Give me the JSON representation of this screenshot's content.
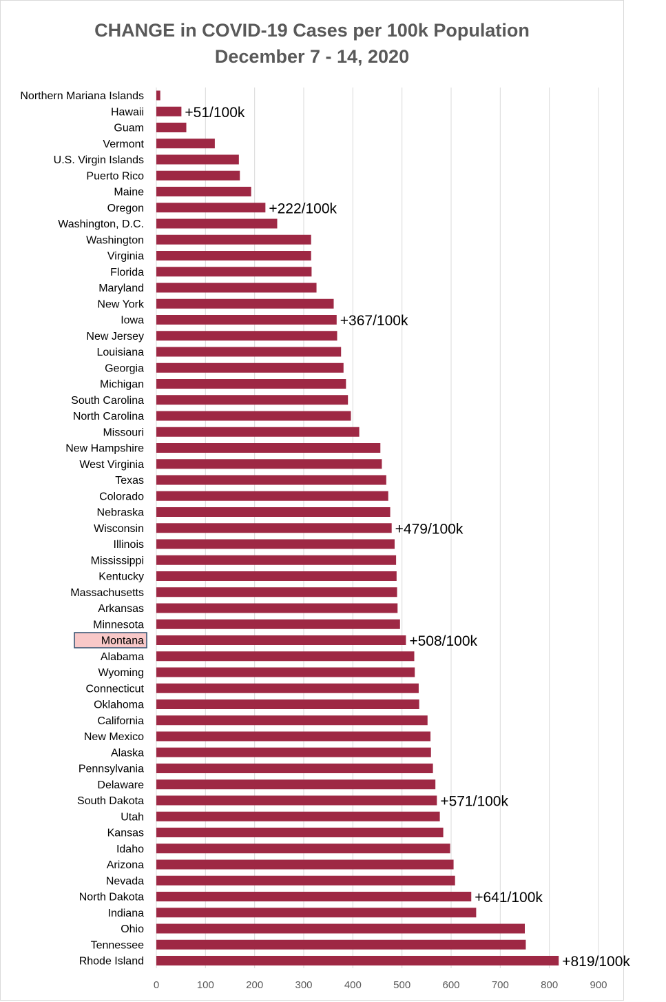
{
  "chart_data": {
    "type": "bar",
    "orientation": "horizontal",
    "title": "CHANGE in COVID-19 Cases per 100k Population",
    "subtitle": "December 7 - 14, 2020",
    "xlabel": "",
    "ylabel": "",
    "xlim": [
      0,
      900
    ],
    "xticks": [
      "0",
      "100",
      "200",
      "300",
      "400",
      "500",
      "600",
      "700",
      "800",
      "900"
    ],
    "grid": true,
    "bar_color": "#9e2844",
    "highlight_category": "Montana",
    "highlight_color": "#f8c8c8",
    "highlight_border": "#2f4f6f",
    "categories": [
      "Northern Mariana Islands",
      "Hawaii",
      "Guam",
      "Vermont",
      "U.S. Virgin Islands",
      "Puerto Rico",
      "Maine",
      "Oregon",
      "Washington, D.C.",
      "Washington",
      "Virginia",
      "Florida",
      "Maryland",
      "New York",
      "Iowa",
      "New Jersey",
      "Louisiana",
      "Georgia",
      "Michigan",
      "South Carolina",
      "North Carolina",
      "Missouri",
      "New Hampshire",
      "West Virginia",
      "Texas",
      "Colorado",
      "Nebraska",
      "Wisconsin",
      "Illinois",
      "Mississippi",
      "Kentucky",
      "Massachusetts",
      "Arkansas",
      "Minnesota",
      "Montana",
      "Alabama",
      "Wyoming",
      "Connecticut",
      "Oklahoma",
      "California",
      "New Mexico",
      "Alaska",
      "Pennsylvania",
      "Delaware",
      "South Dakota",
      "Utah",
      "Kansas",
      "Idaho",
      "Arizona",
      "Nevada",
      "North Dakota",
      "Indiana",
      "Ohio",
      "Tennessee",
      "Rhode Island"
    ],
    "values": [
      8,
      51,
      61,
      119,
      168,
      170,
      193,
      222,
      246,
      315,
      315,
      316,
      326,
      361,
      367,
      368,
      376,
      381,
      386,
      390,
      396,
      413,
      456,
      459,
      468,
      472,
      476,
      479,
      485,
      488,
      489,
      490,
      491,
      496,
      508,
      525,
      526,
      534,
      535,
      552,
      558,
      559,
      563,
      568,
      571,
      577,
      584,
      598,
      605,
      608,
      641,
      651,
      750,
      752,
      819
    ],
    "annotations": [
      {
        "category": "Hawaii",
        "text": "+51/100k"
      },
      {
        "category": "Oregon",
        "text": "+222/100k"
      },
      {
        "category": "Iowa",
        "text": "+367/100k"
      },
      {
        "category": "Wisconsin",
        "text": "+479/100k"
      },
      {
        "category": "Montana",
        "text": "+508/100k"
      },
      {
        "category": "South Dakota",
        "text": "+571/100k"
      },
      {
        "category": "North Dakota",
        "text": "+641/100k"
      },
      {
        "category": "Rhode Island",
        "text": "+819/100k"
      }
    ]
  }
}
